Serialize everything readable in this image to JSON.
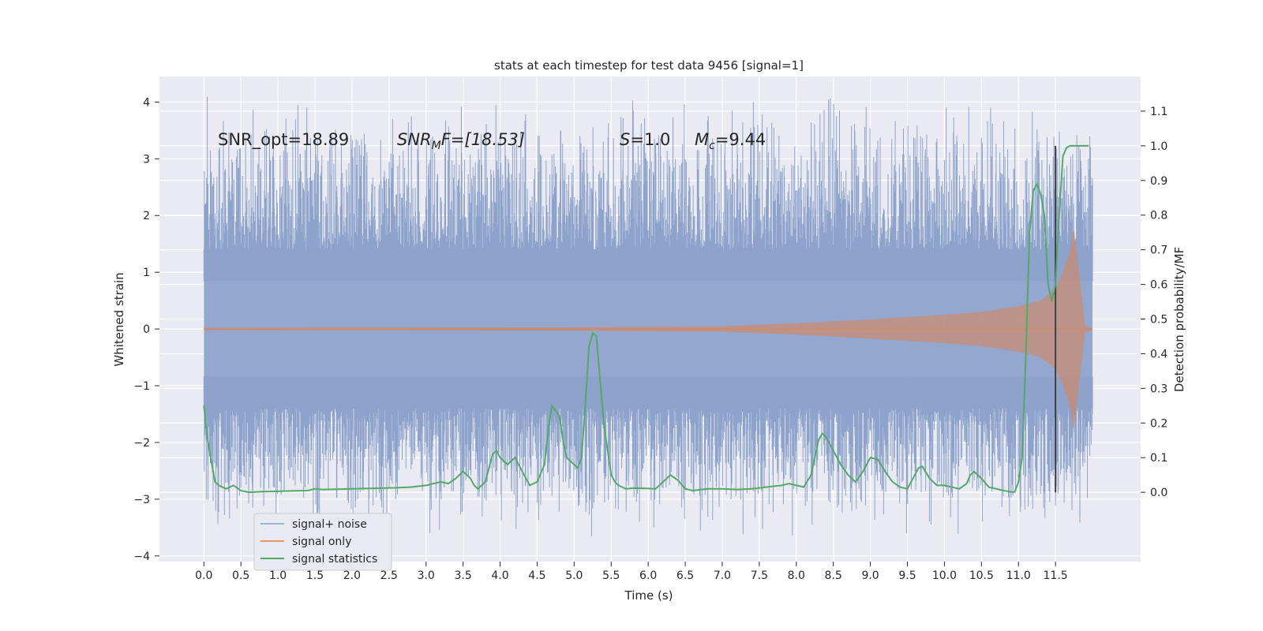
{
  "chart_data": {
    "type": "line",
    "title": "stats at each timestep for test data 9456 [signal=1]",
    "xlabel": "Time (s)",
    "ylabel": "Whitened strain",
    "y2label": "Detection probability/MF",
    "xlim": [
      -0.6,
      12.65
    ],
    "ylim": [
      -4.1,
      4.45
    ],
    "y2lim": [
      -0.2,
      1.2
    ],
    "xticks": [
      0.0,
      0.5,
      1.0,
      1.5,
      2.0,
      2.5,
      3.0,
      3.5,
      4.0,
      4.5,
      5.0,
      5.5,
      6.0,
      6.5,
      7.0,
      7.5,
      8.0,
      8.5,
      9.0,
      9.5,
      10.0,
      10.5,
      11.0,
      11.5
    ],
    "xtick_labels": [
      "0.0",
      "0.5",
      "1.0",
      "1.5",
      "2.0",
      "2.5",
      "3.0",
      "3.5",
      "4.0",
      "4.5",
      "5.0",
      "5.5",
      "6.0",
      "6.5",
      "7.0",
      "7.5",
      "8.0",
      "8.5",
      "9.0",
      "9.5",
      "10.0",
      "10.5",
      "11.0",
      "11.5"
    ],
    "yticks": [
      -4,
      -3,
      -2,
      -1,
      0,
      1,
      2,
      3,
      4
    ],
    "ytick_labels": [
      "−4",
      "−3",
      "−2",
      "−1",
      "0",
      "1",
      "2",
      "3",
      "4"
    ],
    "y2ticks": [
      0.0,
      0.1,
      0.2,
      0.3,
      0.4,
      0.5,
      0.6,
      0.7,
      0.8,
      0.9,
      1.0,
      1.1
    ],
    "y2tick_labels": [
      "0.0",
      "0.1",
      "0.2",
      "0.3",
      "0.4",
      "0.5",
      "0.6",
      "0.7",
      "0.8",
      "0.9",
      "1.0",
      "1.1"
    ],
    "grid": true,
    "legend": "lower-left",
    "annotations": {
      "snr_opt": "SNR_opt=18.89",
      "snr_mf_label": "SNR",
      "snr_mf_sub": "M",
      "snr_mf_tail": "F=[18.53]",
      "s_label": "S",
      "s_value": "=1.0",
      "mc_label": "M",
      "mc_sub": "c",
      "mc_value": "=9.44"
    },
    "marker_line_x": 11.5,
    "series": [
      {
        "name": "signal+ noise",
        "color": "#8ea3cc",
        "axis": "left",
        "x_start": 0.0,
        "x_end": 12.0,
        "core_band": [
          -1.4,
          1.4
        ],
        "envelope_extremes": [
          -3.7,
          4.1
        ]
      },
      {
        "name": "signal only",
        "color": "#dd8452",
        "axis": "left",
        "x_start": 0.0,
        "x_end": 12.0,
        "envelope_x": [
          0.0,
          5.0,
          7.0,
          8.0,
          9.0,
          10.0,
          10.5,
          11.0,
          11.3,
          11.5,
          11.6,
          11.7,
          11.75,
          11.9,
          12.0
        ],
        "envelope_amp": [
          0.02,
          0.03,
          0.05,
          0.1,
          0.17,
          0.25,
          0.3,
          0.4,
          0.5,
          0.7,
          1.0,
          1.4,
          1.8,
          0.05,
          0.02
        ]
      },
      {
        "name": "signal statistics",
        "color": "#55a868",
        "axis": "right",
        "x": [
          0.0,
          0.05,
          0.1,
          0.15,
          0.2,
          0.3,
          0.4,
          0.5,
          0.6,
          0.8,
          1.0,
          1.2,
          1.4,
          1.5,
          1.6,
          1.8,
          2.0,
          2.2,
          2.4,
          2.6,
          2.8,
          3.0,
          3.1,
          3.2,
          3.3,
          3.4,
          3.5,
          3.6,
          3.65,
          3.7,
          3.8,
          3.9,
          3.95,
          4.0,
          4.1,
          4.2,
          4.3,
          4.4,
          4.5,
          4.6,
          4.65,
          4.7,
          4.8,
          4.85,
          4.9,
          5.0,
          5.05,
          5.1,
          5.15,
          5.2,
          5.25,
          5.3,
          5.4,
          5.5,
          5.55,
          5.6,
          5.7,
          5.8,
          6.0,
          6.1,
          6.2,
          6.3,
          6.4,
          6.5,
          6.6,
          6.8,
          7.0,
          7.2,
          7.4,
          7.6,
          7.8,
          7.9,
          8.0,
          8.1,
          8.2,
          8.3,
          8.35,
          8.4,
          8.5,
          8.6,
          8.7,
          8.8,
          8.9,
          9.0,
          9.1,
          9.2,
          9.3,
          9.4,
          9.5,
          9.6,
          9.65,
          9.7,
          9.8,
          9.9,
          10.0,
          10.1,
          10.2,
          10.3,
          10.35,
          10.4,
          10.5,
          10.6,
          10.8,
          10.9,
          10.95,
          11.0,
          11.05,
          11.1,
          11.15,
          11.2,
          11.25,
          11.3,
          11.35,
          11.4,
          11.45,
          11.5,
          11.55,
          11.6,
          11.65,
          11.7,
          11.8,
          11.9,
          11.95
        ],
        "y": [
          0.25,
          0.15,
          0.09,
          0.03,
          0.02,
          0.01,
          0.02,
          0.005,
          0.0,
          0.002,
          0.003,
          0.004,
          0.005,
          0.01,
          0.008,
          0.009,
          0.01,
          0.011,
          0.012,
          0.013,
          0.015,
          0.02,
          0.025,
          0.03,
          0.025,
          0.04,
          0.06,
          0.04,
          0.02,
          0.01,
          0.03,
          0.11,
          0.12,
          0.1,
          0.08,
          0.1,
          0.06,
          0.02,
          0.03,
          0.08,
          0.18,
          0.25,
          0.22,
          0.15,
          0.1,
          0.08,
          0.07,
          0.1,
          0.25,
          0.42,
          0.46,
          0.45,
          0.2,
          0.05,
          0.03,
          0.02,
          0.01,
          0.012,
          0.011,
          0.01,
          0.03,
          0.05,
          0.035,
          0.01,
          0.005,
          0.01,
          0.01,
          0.008,
          0.01,
          0.015,
          0.02,
          0.025,
          0.02,
          0.015,
          0.05,
          0.15,
          0.17,
          0.16,
          0.12,
          0.08,
          0.05,
          0.03,
          0.06,
          0.1,
          0.095,
          0.06,
          0.03,
          0.015,
          0.01,
          0.05,
          0.07,
          0.075,
          0.04,
          0.02,
          0.02,
          0.015,
          0.01,
          0.025,
          0.05,
          0.06,
          0.04,
          0.015,
          0.005,
          0.001,
          0.001,
          0.03,
          0.1,
          0.4,
          0.75,
          0.87,
          0.89,
          0.86,
          0.8,
          0.6,
          0.55,
          0.6,
          0.8,
          0.97,
          0.995,
          1.0,
          1.0,
          1.0,
          1.0
        ]
      }
    ]
  }
}
